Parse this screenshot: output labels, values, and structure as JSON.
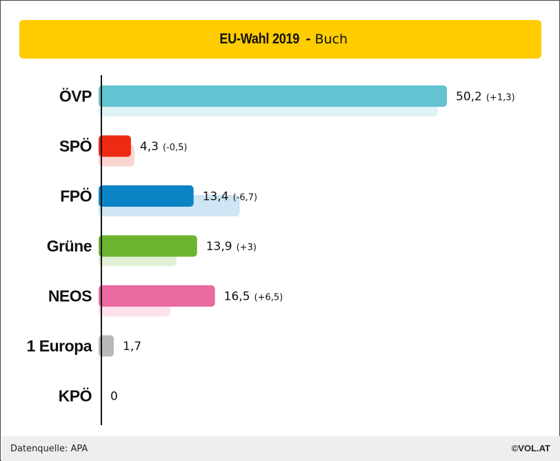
{
  "header": {
    "title": "EU-Wahl 2019",
    "separator": "-",
    "subtitle": "Buch"
  },
  "footer": {
    "source": "Datenquelle: APA",
    "brand": "©VOL.AT"
  },
  "colors": {
    "banner": "#ffcc00",
    "axis": "#111111"
  },
  "chart_data": {
    "type": "bar",
    "orientation": "horizontal",
    "title": "EU-Wahl 2019 - Buch",
    "categories": [
      "ÖVP",
      "SPÖ",
      "FPÖ",
      "Grüne",
      "NEOS",
      "1 Europa",
      "KPÖ"
    ],
    "series": [
      {
        "values": [
          50.2,
          4.3,
          13.4,
          13.9,
          16.5,
          1.7,
          0
        ],
        "value_labels": [
          "50,2",
          "4,3",
          "13,4",
          "13,9",
          "16,5",
          "1,7",
          "0"
        ],
        "colors": [
          "#63c3d1",
          "#ee2a12",
          "#0b84c6",
          "#6ab42e",
          "#e96a9f",
          "#b9b9b9",
          "#8c8c8c"
        ]
      },
      {
        "values": [
          48.9,
          4.8,
          20.1,
          10.9,
          10.0,
          null,
          null
        ],
        "colors": [
          "#dff3f6",
          "#fbd6cf",
          "#cfe5f3",
          "#e2f0d6",
          "#fce0ec",
          "#eeeeee",
          "#eeeeee"
        ]
      }
    ],
    "changes": [
      "+1,3",
      "-0,5",
      "-6,7",
      "+3",
      "+6,5",
      "",
      ""
    ],
    "xlim": [
      0,
      50.2
    ],
    "grid": false,
    "legend": "none"
  }
}
